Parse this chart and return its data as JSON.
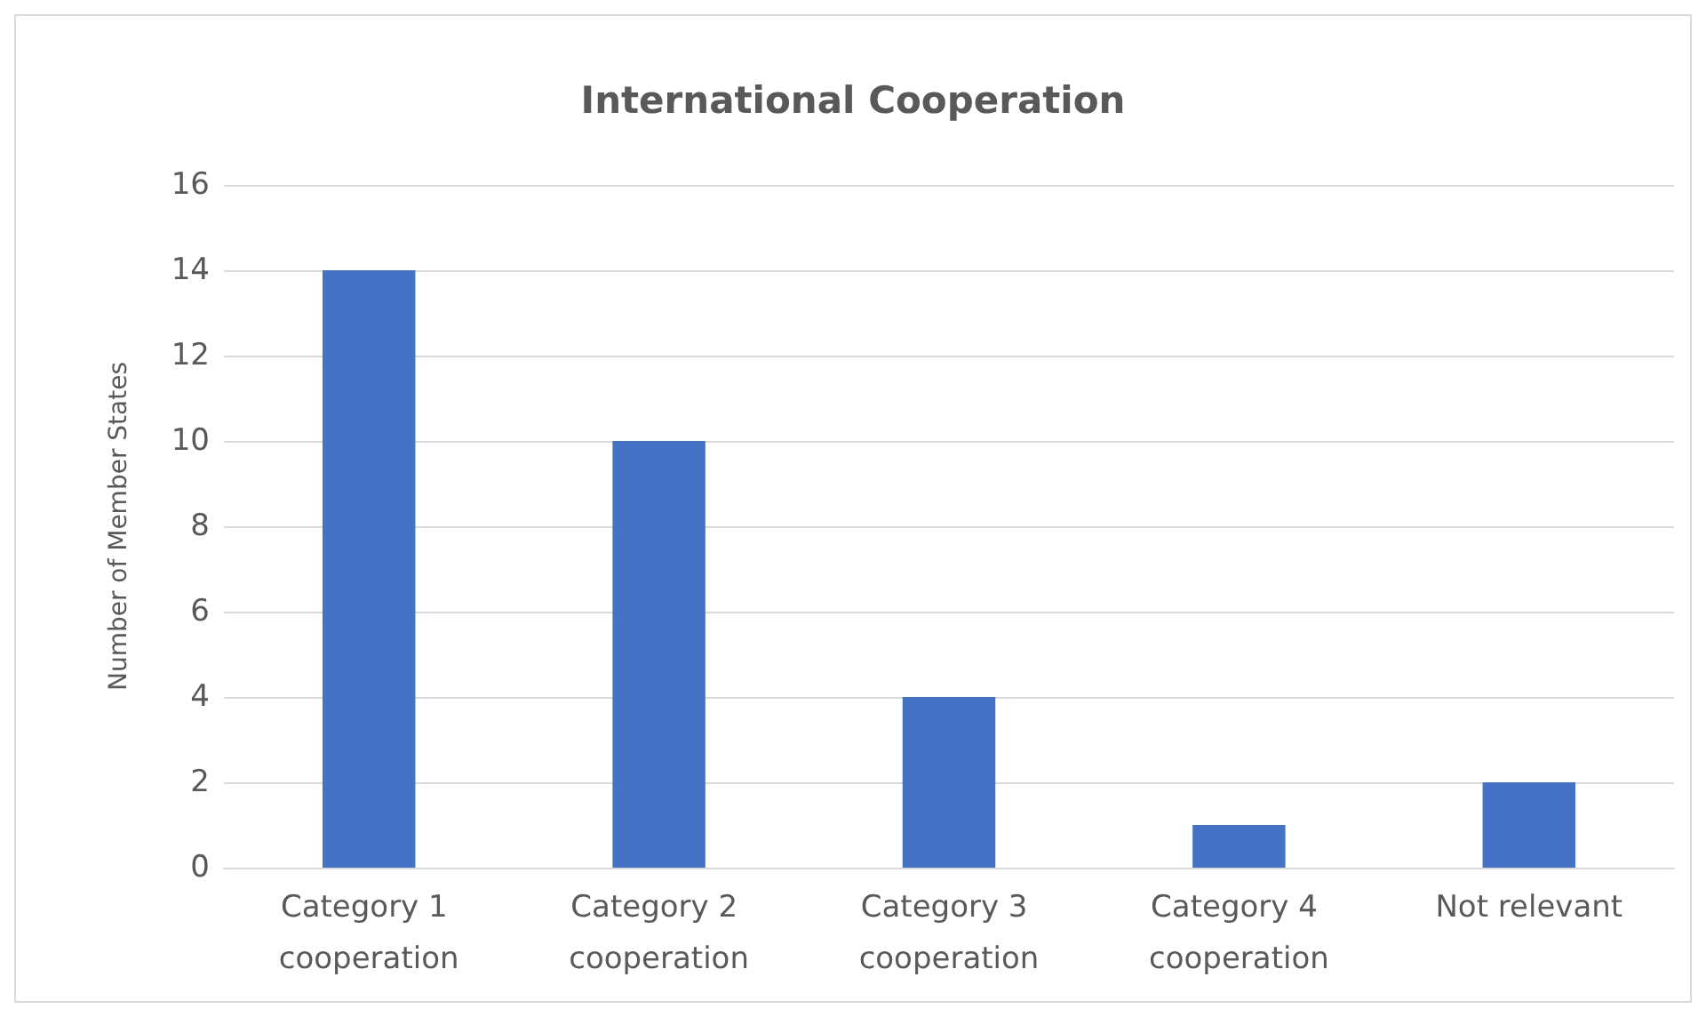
{
  "chart_data": {
    "type": "bar",
    "title": "International Cooperation",
    "ylabel": "Number of Member States",
    "categories": [
      "Category 1 cooperation",
      "Category 2 cooperation",
      "Category 3 cooperation",
      "Category 4 cooperation",
      "Not relevant"
    ],
    "values": [
      14,
      10,
      4,
      1,
      2
    ],
    "color": "#4472c4",
    "ylim": [
      0,
      16
    ],
    "yticks": [
      0,
      2,
      4,
      6,
      8,
      10,
      12,
      14,
      16
    ],
    "grid": "y"
  }
}
